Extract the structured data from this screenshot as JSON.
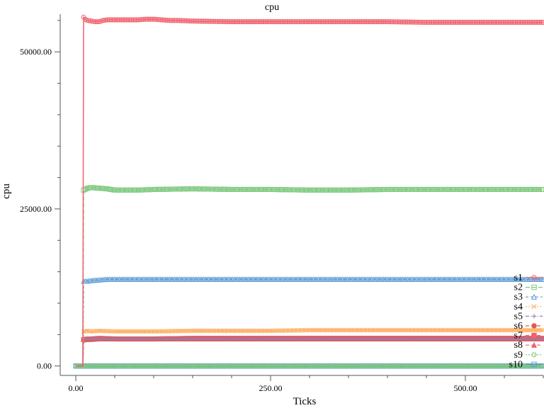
{
  "chart_data": {
    "type": "line",
    "title": "cpu",
    "xlabel": "Ticks",
    "ylabel": "cpu",
    "xlim": [
      -20,
      600
    ],
    "ylim": [
      -1500,
      56000
    ],
    "x_ticks": [
      0,
      250,
      500
    ],
    "x_tick_labels": [
      "0.00",
      "250.00",
      "500.00"
    ],
    "y_ticks": [
      0,
      25000,
      50000
    ],
    "y_tick_labels": [
      "0.00",
      "25000.00",
      "50000.00"
    ],
    "grid": false,
    "legend_position": "right",
    "series": [
      {
        "name": "s1",
        "color": "#f0616d",
        "marker": "circle",
        "dash": "none",
        "x": [
          0,
          9,
          10,
          12,
          15,
          20,
          25,
          30,
          35,
          40,
          50,
          60,
          70,
          80,
          90,
          100,
          110,
          120,
          130,
          150,
          200,
          250,
          300,
          350,
          400,
          450,
          500,
          550,
          600
        ],
        "y": [
          0,
          0,
          55500,
          55200,
          55000,
          54900,
          54800,
          54800,
          55000,
          55100,
          55100,
          55100,
          55100,
          55100,
          55200,
          55200,
          55100,
          55000,
          55000,
          54900,
          54800,
          54800,
          54800,
          54800,
          54800,
          54700,
          54700,
          54700,
          54700
        ]
      },
      {
        "name": "s2",
        "color": "#7fc97f",
        "marker": "square",
        "dash": "6,3",
        "x": [
          0,
          9,
          10,
          15,
          20,
          30,
          40,
          50,
          60,
          80,
          100,
          150,
          200,
          250,
          300,
          350,
          400,
          450,
          500,
          550,
          600
        ],
        "y": [
          0,
          0,
          28000,
          28300,
          28400,
          28300,
          28200,
          28000,
          28000,
          28000,
          28100,
          28200,
          28100,
          28100,
          28000,
          28000,
          28100,
          28100,
          28100,
          28100,
          28100
        ]
      },
      {
        "name": "s3",
        "color": "#5b9bd5",
        "marker": "triangle",
        "dash": "4,3",
        "x": [
          0,
          9,
          10,
          15,
          20,
          30,
          40,
          60,
          80,
          100,
          150,
          200,
          250,
          300,
          350,
          400,
          450,
          500,
          550,
          600
        ],
        "y": [
          0,
          0,
          13500,
          13500,
          13600,
          13700,
          13800,
          13800,
          13800,
          13800,
          13800,
          13800,
          13800,
          13800,
          13800,
          13800,
          13800,
          13800,
          13800,
          13800
        ]
      },
      {
        "name": "s4",
        "color": "#fdae61",
        "marker": "x",
        "dash": "2,2",
        "x": [
          0,
          9,
          10,
          15,
          20,
          30,
          50,
          100,
          150,
          200,
          250,
          300,
          350,
          400,
          450,
          500,
          550,
          600
        ],
        "y": [
          0,
          0,
          5500,
          5600,
          5500,
          5600,
          5500,
          5500,
          5600,
          5600,
          5600,
          5700,
          5700,
          5700,
          5700,
          5700,
          5700,
          5700
        ]
      },
      {
        "name": "s5",
        "color": "#9e7bb5",
        "marker": "plus",
        "dash": "5,2,1,2",
        "x": [
          0,
          9,
          10,
          20,
          50,
          100,
          200,
          300,
          400,
          500,
          600
        ],
        "y": [
          0,
          0,
          4300,
          4300,
          4300,
          4300,
          4300,
          4300,
          4300,
          4300,
          4300
        ]
      },
      {
        "name": "s6",
        "color": "#e05a4f",
        "marker": "filled-circle",
        "dash": "5,3",
        "x": [
          0,
          9,
          10,
          15,
          20,
          30,
          50,
          100,
          150,
          200,
          250,
          300,
          350,
          400,
          450,
          500,
          550,
          600
        ],
        "y": [
          0,
          0,
          4100,
          4200,
          4200,
          4300,
          4300,
          4300,
          4300,
          4300,
          4300,
          4300,
          4300,
          4300,
          4300,
          4300,
          4300,
          4300
        ]
      },
      {
        "name": "s7",
        "color": "#f0616d",
        "marker": "filled-square",
        "dash": "5,3",
        "x": [
          0,
          9,
          10,
          15,
          20,
          30,
          50,
          100,
          150,
          200,
          250,
          300,
          350,
          400,
          450,
          500,
          550,
          600
        ],
        "y": [
          0,
          0,
          4200,
          4300,
          4300,
          4400,
          4300,
          4300,
          4400,
          4400,
          4400,
          4400,
          4400,
          4400,
          4400,
          4400,
          4400,
          4400
        ]
      },
      {
        "name": "s8",
        "color": "#f0616d",
        "marker": "filled-triangle",
        "dash": "5,3",
        "x": [
          0,
          9,
          10,
          20,
          50,
          100,
          200,
          300,
          400,
          500,
          600
        ],
        "y": [
          0,
          0,
          4200,
          4300,
          4300,
          4300,
          4300,
          4300,
          4300,
          4300,
          4300
        ]
      },
      {
        "name": "s9",
        "color": "#7fc97f",
        "marker": "hexagon",
        "dash": "2,2",
        "x": [
          0,
          100,
          200,
          300,
          400,
          500,
          600
        ],
        "y": [
          0,
          0,
          0,
          0,
          0,
          0,
          0
        ]
      },
      {
        "name": "s10",
        "color": "#5b9bd5",
        "marker": "square",
        "dash": "none",
        "x": [
          0,
          100,
          200,
          300,
          400,
          500,
          600
        ],
        "y": [
          0,
          0,
          0,
          0,
          0,
          0,
          0
        ]
      }
    ]
  }
}
